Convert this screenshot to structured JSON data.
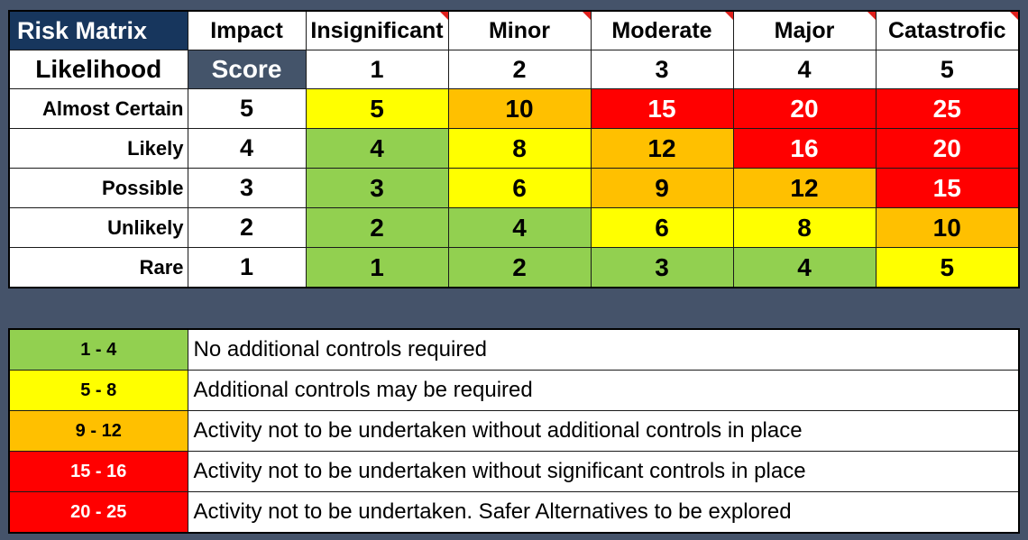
{
  "matrix": {
    "title": "Risk Matrix",
    "impact_label": "Impact",
    "likelihood_label": "Likelihood",
    "score_label": "Score",
    "impact_levels": [
      {
        "label": "Insignificant",
        "score": "1"
      },
      {
        "label": "Minor",
        "score": "2"
      },
      {
        "label": "Moderate",
        "score": "3"
      },
      {
        "label": "Major",
        "score": "4"
      },
      {
        "label": "Catastrofic",
        "score": "5"
      }
    ],
    "rows": [
      {
        "label": "Almost Certain",
        "score": "5",
        "cells": [
          {
            "value": "5",
            "level": "yellow"
          },
          {
            "value": "10",
            "level": "orange"
          },
          {
            "value": "15",
            "level": "red"
          },
          {
            "value": "20",
            "level": "red"
          },
          {
            "value": "25",
            "level": "red"
          }
        ]
      },
      {
        "label": "Likely",
        "score": "4",
        "cells": [
          {
            "value": "4",
            "level": "green"
          },
          {
            "value": "8",
            "level": "yellow"
          },
          {
            "value": "12",
            "level": "orange"
          },
          {
            "value": "16",
            "level": "red"
          },
          {
            "value": "20",
            "level": "red"
          }
        ]
      },
      {
        "label": "Possible",
        "score": "3",
        "cells": [
          {
            "value": "3",
            "level": "green"
          },
          {
            "value": "6",
            "level": "yellow"
          },
          {
            "value": "9",
            "level": "orange"
          },
          {
            "value": "12",
            "level": "orange"
          },
          {
            "value": "15",
            "level": "red"
          }
        ]
      },
      {
        "label": "Unlikely",
        "score": "2",
        "cells": [
          {
            "value": "2",
            "level": "green"
          },
          {
            "value": "4",
            "level": "green"
          },
          {
            "value": "6",
            "level": "yellow"
          },
          {
            "value": "8",
            "level": "yellow"
          },
          {
            "value": "10",
            "level": "orange"
          }
        ]
      },
      {
        "label": "Rare",
        "score": "1",
        "cells": [
          {
            "value": "1",
            "level": "green"
          },
          {
            "value": "2",
            "level": "green"
          },
          {
            "value": "3",
            "level": "green"
          },
          {
            "value": "4",
            "level": "green"
          },
          {
            "value": "5",
            "level": "yellow"
          }
        ]
      }
    ]
  },
  "legend": [
    {
      "range": "1 - 4",
      "level": "green",
      "description": "No additional controls required"
    },
    {
      "range": "5 - 8",
      "level": "yellow",
      "description": "Additional controls may be required"
    },
    {
      "range": "9 - 12",
      "level": "orange",
      "description": "Activity not to be undertaken without additional controls in place"
    },
    {
      "range": "15 - 16",
      "level": "red",
      "description": "Activity not to be undertaken without significant controls in place"
    },
    {
      "range": "20 - 25",
      "level": "red",
      "description": "Activity not to be undertaken. Safer Alternatives to be explored"
    }
  ],
  "colors": {
    "green": "#92d050",
    "yellow": "#ffff00",
    "orange": "#ffc000",
    "red": "#ff0000",
    "title_bg": "#17365d",
    "score_bg": "#44546a",
    "page_bg": "#45536a"
  }
}
